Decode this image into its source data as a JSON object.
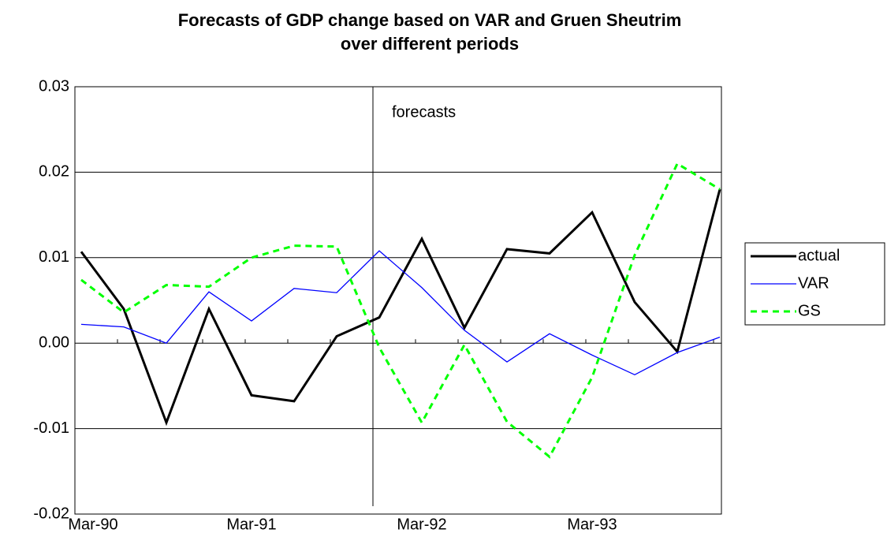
{
  "chart_data": {
    "type": "line",
    "title": "Forecasts of GDP change based on VAR and Gruen Sheutrim over different periods",
    "annotation": "forecasts",
    "categories": [
      "Mar-90",
      null,
      null,
      null,
      "Mar-91",
      null,
      null,
      null,
      "Mar-92",
      null,
      null,
      null,
      "Mar-93",
      null,
      null,
      null
    ],
    "series": [
      {
        "name": "actual",
        "color": "#000000",
        "dash": "solid",
        "width": 3,
        "values": [
          0.0107,
          0.004,
          -0.0093,
          0.004,
          -0.0061,
          -0.0068,
          0.0008,
          0.003,
          0.0122,
          0.0018,
          0.011,
          0.0105,
          0.0153,
          0.0048,
          -0.001,
          0.018
        ]
      },
      {
        "name": "VAR",
        "color": "#0000ff",
        "dash": "solid",
        "width": 1.3,
        "values": [
          0.0022,
          0.0019,
          0.0,
          0.006,
          0.0026,
          0.0064,
          0.0059,
          0.0108,
          0.0065,
          0.0015,
          -0.0022,
          0.0011,
          -0.0014,
          -0.0037,
          -0.0011,
          0.0007
        ]
      },
      {
        "name": "GS",
        "color": "#00ff00",
        "dash": "dashed",
        "width": 3,
        "values": [
          0.0074,
          0.0036,
          0.0068,
          0.0066,
          0.01,
          0.0114,
          0.0113,
          -0.0005,
          -0.0093,
          -0.0002,
          -0.0092,
          -0.0133,
          -0.004,
          0.0103,
          0.021,
          0.018
        ]
      }
    ],
    "ylim": [
      -0.02,
      0.03
    ],
    "yticks": [
      -0.02,
      -0.01,
      {
        "value": 0,
        "label": "0.00"
      },
      0.01,
      0.02,
      0.03
    ],
    "grid": true,
    "legend": "right"
  }
}
